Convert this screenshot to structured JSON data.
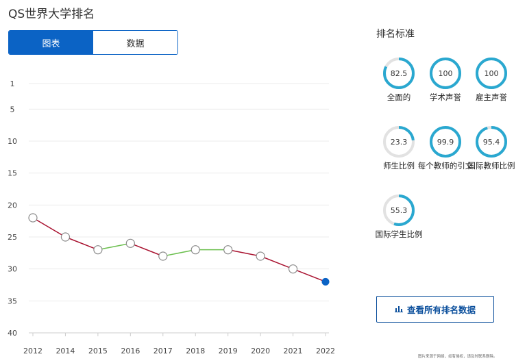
{
  "title": "QS世界大学排名",
  "tabs": [
    {
      "label": "图表",
      "active": true
    },
    {
      "label": "数据",
      "active": false
    }
  ],
  "criteria_title": "排名标准",
  "criteria": [
    {
      "label": "全面的",
      "value": "82.5",
      "fraction": 0.825
    },
    {
      "label": "学术声誉",
      "value": "100",
      "fraction": 1.0
    },
    {
      "label": "雇主声誉",
      "value": "100",
      "fraction": 1.0
    },
    {
      "label": "师生比例",
      "value": "23.3",
      "fraction": 0.233
    },
    {
      "label": "每个教师的引文",
      "value": "99.9",
      "fraction": 0.999
    },
    {
      "label": "国际教师比例",
      "value": "95.4",
      "fraction": 0.954
    },
    {
      "label": "国际学生比例",
      "value": "55.3",
      "fraction": 0.553
    }
  ],
  "all_data_button": "查看所有排名数据",
  "footnote": "图片来源于网络，如有侵权，请及时联系删除。",
  "colors": {
    "accent": "#0b63c5",
    "gauge": "#2aa8d0",
    "gauge_track": "#e2e2e2",
    "decline": "#a8102e",
    "improve": "#6bbf4e"
  },
  "chart_data": {
    "type": "line",
    "x": [
      "2012",
      "2014",
      "2015",
      "2016",
      "2017",
      "2018",
      "2019",
      "2020",
      "2021",
      "2022"
    ],
    "series": [
      {
        "values": [
          22,
          25,
          27,
          26,
          28,
          27,
          27,
          28,
          30,
          32
        ]
      }
    ],
    "y_ticks": [
      "1",
      "5",
      "10",
      "15",
      "20",
      "25",
      "30",
      "35",
      "40"
    ],
    "y_tick_values": [
      1,
      5,
      10,
      15,
      20,
      25,
      30,
      35,
      40
    ],
    "ylim": [
      1,
      40
    ],
    "y_inverted": true,
    "grid": true,
    "highlight_last": true
  }
}
